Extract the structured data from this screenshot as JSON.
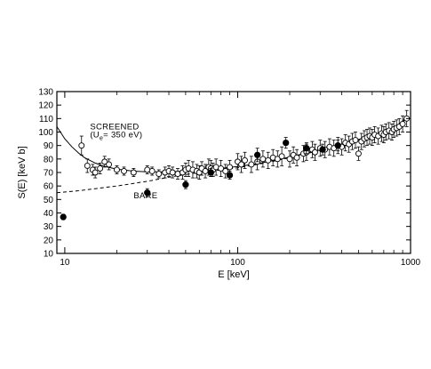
{
  "chart_data": {
    "type": "scatter",
    "title": "",
    "xlabel": "E [keV]",
    "ylabel": "S(E) [keV b]",
    "x_scale": "log",
    "xlim": [
      9,
      1000
    ],
    "ylim": [
      10,
      130
    ],
    "x_ticks": [
      {
        "value": 10,
        "label": "10"
      },
      {
        "value": 100,
        "label": "100"
      },
      {
        "value": 1000,
        "label": "1000"
      }
    ],
    "y_ticks": [
      10,
      20,
      30,
      40,
      50,
      60,
      70,
      80,
      90,
      100,
      110,
      120,
      130
    ],
    "grid": false,
    "annotations": [
      {
        "text": "SCREENED",
        "at": [
          14,
          102
        ]
      },
      {
        "text": "(U",
        "sub": "e",
        "tail": "= 350 eV)",
        "at": [
          14,
          96
        ]
      },
      {
        "text": "BARE",
        "at": [
          25,
          51
        ]
      }
    ],
    "curves": [
      {
        "style": "solid",
        "points": [
          [
            9,
            104
          ],
          [
            10,
            95
          ],
          [
            11,
            89
          ],
          [
            12,
            84.5
          ],
          [
            13,
            81
          ],
          [
            15,
            77
          ],
          [
            17,
            74.5
          ],
          [
            20,
            72.5
          ],
          [
            25,
            71
          ],
          [
            30,
            70.5
          ],
          [
            40,
            70.5
          ],
          [
            50,
            71
          ],
          [
            60,
            71.5
          ],
          [
            80,
            73
          ],
          [
            100,
            74.5
          ],
          [
            130,
            76.5
          ],
          [
            170,
            79.5
          ],
          [
            200,
            81.5
          ],
          [
            250,
            84.5
          ],
          [
            300,
            87
          ],
          [
            400,
            91
          ],
          [
            500,
            94.5
          ],
          [
            600,
            97.5
          ],
          [
            700,
            100
          ],
          [
            800,
            103
          ],
          [
            900,
            108
          ],
          [
            950,
            112
          ]
        ]
      },
      {
        "style": "dashed",
        "points": [
          [
            9,
            55
          ],
          [
            12,
            56.5
          ],
          [
            15,
            58
          ],
          [
            20,
            60
          ],
          [
            30,
            63.5
          ],
          [
            40,
            66.5
          ],
          [
            50,
            68.5
          ],
          [
            60,
            70
          ],
          [
            70,
            71
          ],
          [
            80,
            72
          ],
          [
            100,
            73.5
          ],
          [
            130,
            76
          ],
          [
            170,
            79
          ],
          [
            200,
            81
          ],
          [
            250,
            84
          ],
          [
            300,
            86.5
          ],
          [
            400,
            90.5
          ],
          [
            500,
            94
          ],
          [
            600,
            97
          ],
          [
            700,
            100
          ],
          [
            800,
            102.5
          ],
          [
            900,
            107
          ],
          [
            950,
            111
          ]
        ]
      }
    ],
    "series": [
      {
        "marker": "open-circle",
        "points": [
          [
            12.5,
            90,
            7
          ],
          [
            13.5,
            75,
            5
          ],
          [
            14.5,
            72,
            4
          ],
          [
            15,
            70,
            4
          ],
          [
            16,
            73,
            4
          ],
          [
            17,
            78,
            4
          ],
          [
            18,
            76,
            4
          ],
          [
            20,
            72,
            3
          ],
          [
            22,
            71,
            3
          ],
          [
            25,
            70,
            3
          ],
          [
            30,
            72,
            3
          ],
          [
            32,
            71,
            3
          ],
          [
            35,
            69,
            3
          ],
          [
            38,
            70,
            4
          ],
          [
            40,
            71,
            4
          ],
          [
            42,
            70,
            4
          ],
          [
            45,
            69,
            4
          ],
          [
            48,
            70,
            5
          ],
          [
            50,
            72,
            5
          ],
          [
            52,
            73,
            6
          ],
          [
            55,
            72,
            6
          ],
          [
            58,
            71,
            5
          ],
          [
            60,
            70,
            5
          ],
          [
            62,
            73,
            5
          ],
          [
            65,
            71,
            5
          ],
          [
            68,
            74,
            6
          ],
          [
            70,
            73,
            6
          ],
          [
            72,
            72,
            5
          ],
          [
            75,
            74,
            6
          ],
          [
            80,
            73,
            6
          ],
          [
            85,
            71,
            5
          ],
          [
            90,
            74,
            5
          ],
          [
            100,
            78,
            6
          ],
          [
            105,
            76,
            6
          ],
          [
            110,
            79,
            6
          ],
          [
            120,
            76,
            6
          ],
          [
            130,
            78,
            6
          ],
          [
            140,
            80,
            6
          ],
          [
            150,
            79,
            6
          ],
          [
            160,
            81,
            6
          ],
          [
            170,
            80,
            6
          ],
          [
            180,
            82,
            7
          ],
          [
            200,
            80,
            6
          ],
          [
            210,
            83,
            6
          ],
          [
            220,
            81,
            6
          ],
          [
            240,
            84,
            6
          ],
          [
            250,
            85,
            6
          ],
          [
            270,
            87,
            6
          ],
          [
            280,
            85,
            6
          ],
          [
            300,
            88,
            6
          ],
          [
            320,
            87,
            6
          ],
          [
            340,
            89,
            6
          ],
          [
            360,
            88,
            6
          ],
          [
            380,
            90,
            6
          ],
          [
            400,
            89,
            6
          ],
          [
            420,
            92,
            6
          ],
          [
            440,
            91,
            6
          ],
          [
            460,
            93,
            6
          ],
          [
            480,
            94,
            6
          ],
          [
            500,
            84,
            5
          ],
          [
            520,
            93,
            6
          ],
          [
            540,
            95,
            6
          ],
          [
            560,
            96,
            6
          ],
          [
            580,
            97,
            6
          ],
          [
            600,
            96,
            6
          ],
          [
            620,
            98,
            6
          ],
          [
            650,
            97,
            6
          ],
          [
            680,
            99,
            6
          ],
          [
            700,
            98,
            6
          ],
          [
            720,
            100,
            6
          ],
          [
            750,
            101,
            6
          ],
          [
            780,
            100,
            6
          ],
          [
            800,
            102,
            6
          ],
          [
            830,
            103,
            6
          ],
          [
            860,
            104,
            6
          ],
          [
            900,
            106,
            6
          ],
          [
            950,
            110,
            6
          ]
        ]
      },
      {
        "marker": "filled-circle",
        "points": [
          [
            9.8,
            37,
            2
          ],
          [
            30,
            55,
            3
          ],
          [
            50,
            61,
            3
          ],
          [
            70,
            70,
            3
          ],
          [
            90,
            68,
            3
          ],
          [
            130,
            83,
            5
          ],
          [
            190,
            92,
            4
          ],
          [
            250,
            88,
            4
          ],
          [
            310,
            87,
            4
          ],
          [
            380,
            90,
            4
          ]
        ]
      }
    ]
  }
}
